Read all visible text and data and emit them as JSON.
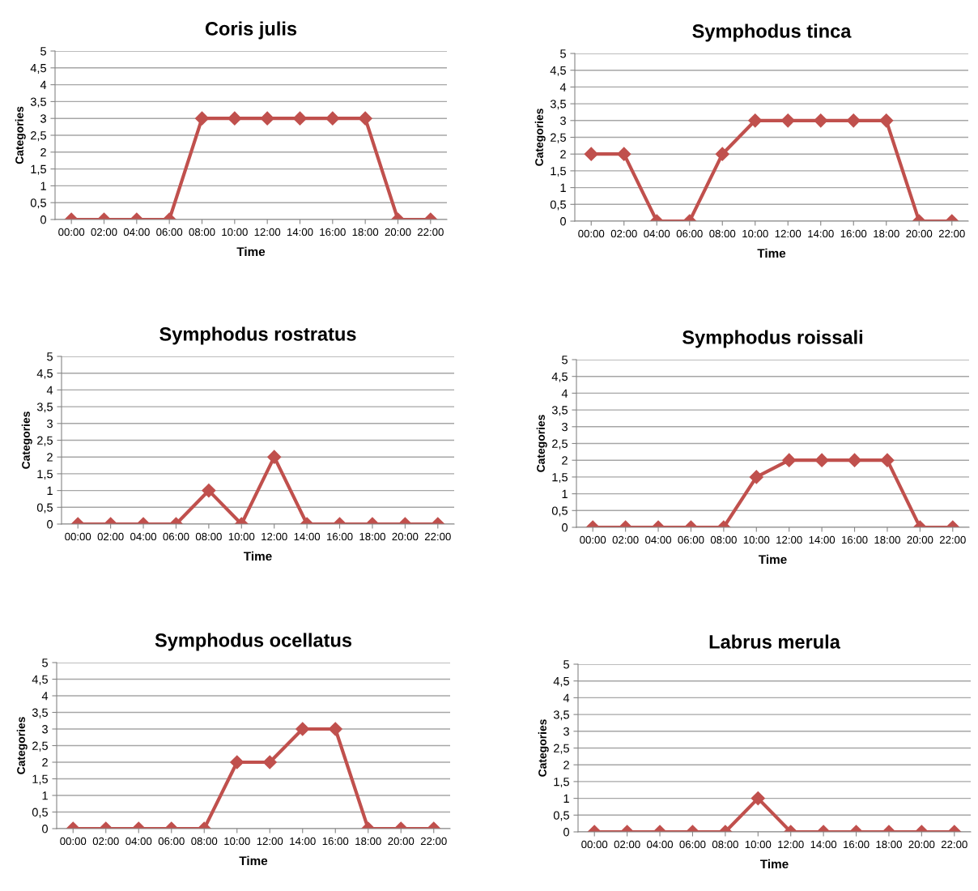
{
  "chart_data": [
    {
      "type": "line",
      "title": "Coris julis",
      "xlabel": "Time",
      "ylabel": "Categories",
      "categories": [
        "00:00",
        "02:00",
        "04:00",
        "06:00",
        "08:00",
        "10:00",
        "12:00",
        "14:00",
        "16:00",
        "18:00",
        "20:00",
        "22:00"
      ],
      "series": [
        {
          "color": "#c0504d",
          "values": [
            0,
            0,
            0,
            0,
            3,
            3,
            3,
            3,
            3,
            3,
            0,
            0
          ]
        }
      ],
      "ylim": [
        0,
        5
      ],
      "yticks": [
        0,
        {
          "value": 0.5,
          "label": "0,5"
        },
        1,
        {
          "value": 1.5,
          "label": "1,5"
        },
        2,
        {
          "value": 2.5,
          "label": "2,5"
        },
        3,
        {
          "value": 3.5,
          "label": "3,5"
        },
        4,
        {
          "value": 4.5,
          "label": "4,5"
        },
        5
      ],
      "grid": "y",
      "marker": "diamond",
      "line_style": "solid"
    },
    {
      "type": "line",
      "title": "Symphodus tinca",
      "xlabel": "Time",
      "ylabel": "Categories",
      "categories": [
        "00:00",
        "02:00",
        "04:00",
        "06:00",
        "08:00",
        "10:00",
        "12:00",
        "14:00",
        "16:00",
        "18:00",
        "20:00",
        "22:00"
      ],
      "series": [
        {
          "color": "#c0504d",
          "values": [
            2,
            2,
            0,
            0,
            2,
            3,
            3,
            3,
            3,
            3,
            0,
            0
          ]
        }
      ],
      "ylim": [
        0,
        5
      ],
      "yticks": [
        0,
        {
          "value": 0.5,
          "label": "0,5"
        },
        1,
        {
          "value": 1.5,
          "label": "1,5"
        },
        2,
        {
          "value": 2.5,
          "label": "2,5"
        },
        3,
        {
          "value": 3.5,
          "label": "3,5"
        },
        4,
        {
          "value": 4.5,
          "label": "4,5"
        },
        5
      ],
      "grid": "y",
      "marker": "diamond",
      "line_style": "solid"
    },
    {
      "type": "line",
      "title": "Symphodus rostratus",
      "xlabel": "Time",
      "ylabel": "Categories",
      "categories": [
        "00:00",
        "02:00",
        "04:00",
        "06:00",
        "08:00",
        "10:00",
        "12:00",
        "14:00",
        "16:00",
        "18:00",
        "20:00",
        "22:00"
      ],
      "series": [
        {
          "color": "#c0504d",
          "values": [
            0,
            0,
            0,
            0,
            1,
            0,
            2,
            0,
            0,
            0,
            0,
            0
          ]
        }
      ],
      "ylim": [
        0,
        5
      ],
      "yticks": [
        0,
        {
          "value": 0.5,
          "label": "0,5"
        },
        1,
        {
          "value": 1.5,
          "label": "1,5"
        },
        2,
        {
          "value": 2.5,
          "label": "2,5"
        },
        3,
        {
          "value": 3.5,
          "label": "3,5"
        },
        4,
        {
          "value": 4.5,
          "label": "4,5"
        },
        5
      ],
      "grid": "y",
      "marker": "diamond",
      "line_style": "solid"
    },
    {
      "type": "line",
      "title": "Symphodus roissali",
      "xlabel": "Time",
      "ylabel": "Categories",
      "categories": [
        "00:00",
        "02:00",
        "04:00",
        "06:00",
        "08:00",
        "10:00",
        "12:00",
        "14:00",
        "16:00",
        "18:00",
        "20:00",
        "22:00"
      ],
      "series": [
        {
          "color": "#c0504d",
          "values": [
            0,
            0,
            0,
            0,
            0,
            1.5,
            2,
            2,
            2,
            2,
            0,
            0
          ]
        }
      ],
      "ylim": [
        0,
        5
      ],
      "yticks": [
        0,
        {
          "value": 0.5,
          "label": "0,5"
        },
        1,
        {
          "value": 1.5,
          "label": "1,5"
        },
        2,
        {
          "value": 2.5,
          "label": "2,5"
        },
        3,
        {
          "value": 3.5,
          "label": "3,5"
        },
        4,
        {
          "value": 4.5,
          "label": "4,5"
        },
        5
      ],
      "grid": "y",
      "marker": "diamond",
      "line_style": "solid"
    },
    {
      "type": "line",
      "title": "Symphodus ocellatus",
      "xlabel": "Time",
      "ylabel": "Categories",
      "categories": [
        "00:00",
        "02:00",
        "04:00",
        "06:00",
        "08:00",
        "10:00",
        "12:00",
        "14:00",
        "16:00",
        "18:00",
        "20:00",
        "22:00"
      ],
      "series": [
        {
          "color": "#c0504d",
          "values": [
            0,
            0,
            0,
            0,
            0,
            2,
            2,
            3,
            3,
            0,
            0,
            0
          ]
        }
      ],
      "ylim": [
        0,
        5
      ],
      "yticks": [
        0,
        {
          "value": 0.5,
          "label": "0,5"
        },
        1,
        {
          "value": 1.5,
          "label": "1,5"
        },
        2,
        {
          "value": 2.5,
          "label": "2,5"
        },
        3,
        {
          "value": 3.5,
          "label": "3,5"
        },
        4,
        {
          "value": 4.5,
          "label": "4,5"
        },
        5
      ],
      "grid": "y",
      "marker": "diamond",
      "line_style": "solid"
    },
    {
      "type": "line",
      "title": "Labrus merula",
      "xlabel": "Time",
      "ylabel": "Categories",
      "categories": [
        "00:00",
        "02:00",
        "04:00",
        "06:00",
        "08:00",
        "10:00",
        "12:00",
        "14:00",
        "16:00",
        "18:00",
        "20:00",
        "22:00"
      ],
      "series": [
        {
          "color": "#c0504d",
          "values": [
            0,
            0,
            0,
            0,
            0,
            1,
            0,
            0,
            0,
            0,
            0,
            0
          ]
        }
      ],
      "ylim": [
        0,
        5
      ],
      "yticks": [
        0,
        {
          "value": 0.5,
          "label": "0,5"
        },
        1,
        {
          "value": 1.5,
          "label": "1,5"
        },
        2,
        {
          "value": 2.5,
          "label": "2,5"
        },
        3,
        {
          "value": 3.5,
          "label": "3,5"
        },
        4,
        {
          "value": 4.5,
          "label": "4,5"
        },
        5
      ],
      "grid": "y",
      "marker": "diamond",
      "line_style": "solid"
    }
  ]
}
